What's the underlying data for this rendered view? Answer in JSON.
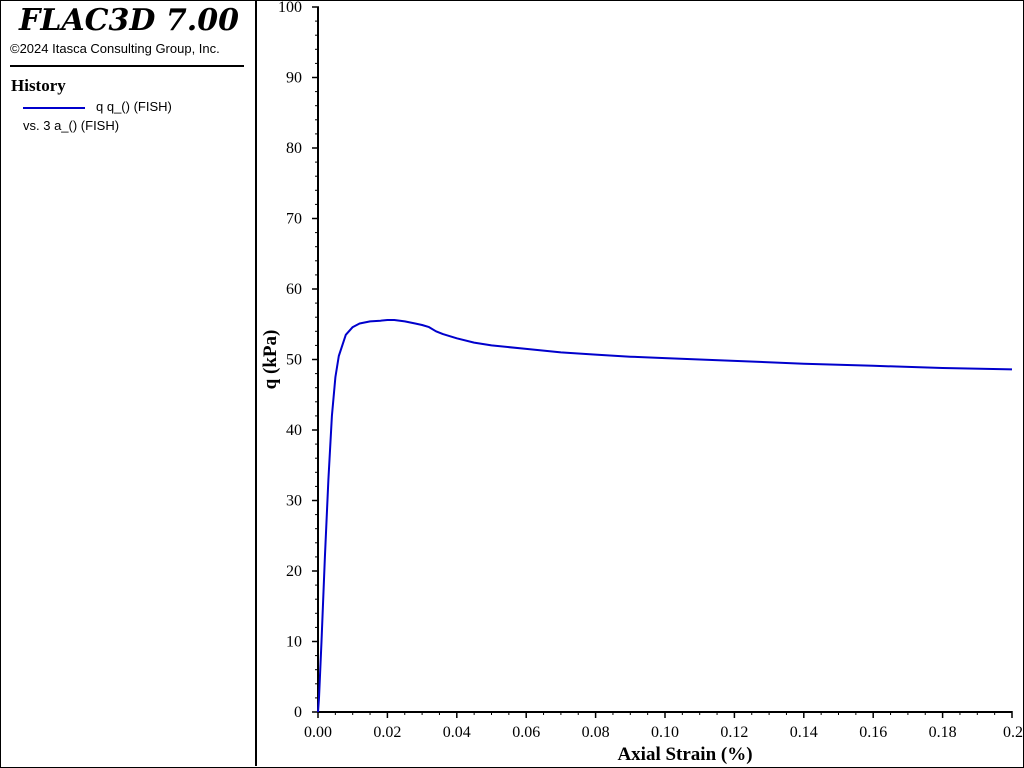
{
  "app": {
    "title": "FLAC3D 7.00",
    "copyright": "©2024 Itasca Consulting Group, Inc."
  },
  "legend": {
    "heading": "History",
    "series_label": "q q_() (FISH)",
    "vs_label": "vs. 3 a_() (FISH)",
    "line_color": "#0000cc"
  },
  "chart_data": {
    "type": "line",
    "xlabel": "Axial Strain (%)",
    "ylabel": "q (kPa)",
    "xlim": [
      0,
      0.2
    ],
    "ylim": [
      0,
      100
    ],
    "x_ticks": [
      "0.00",
      "0.02",
      "0.04",
      "0.06",
      "0.08",
      "0.10",
      "0.12",
      "0.14",
      "0.16",
      "0.18",
      "0.2"
    ],
    "y_ticks": [
      "0",
      "10",
      "20",
      "30",
      "40",
      "50",
      "60",
      "70",
      "80",
      "90",
      "100"
    ],
    "grid": false,
    "series": [
      {
        "color": "#0000cc",
        "x": [
          0,
          0.0003,
          0.001,
          0.002,
          0.003,
          0.004,
          0.005,
          0.006,
          0.008,
          0.01,
          0.012,
          0.015,
          0.018,
          0.02,
          0.022,
          0.025,
          0.028,
          0.03,
          0.032,
          0.034,
          0.036,
          0.04,
          0.045,
          0.05,
          0.06,
          0.07,
          0.08,
          0.09,
          0.1,
          0.12,
          0.14,
          0.16,
          0.18,
          0.2
        ],
        "y": [
          0,
          2,
          10,
          22,
          33,
          42,
          47.5,
          50.5,
          53.5,
          54.6,
          55.1,
          55.4,
          55.5,
          55.6,
          55.6,
          55.4,
          55.1,
          54.9,
          54.6,
          54.0,
          53.6,
          53.0,
          52.4,
          52.0,
          51.5,
          51.0,
          50.7,
          50.4,
          50.2,
          49.8,
          49.4,
          49.1,
          48.8,
          48.6
        ]
      }
    ]
  }
}
